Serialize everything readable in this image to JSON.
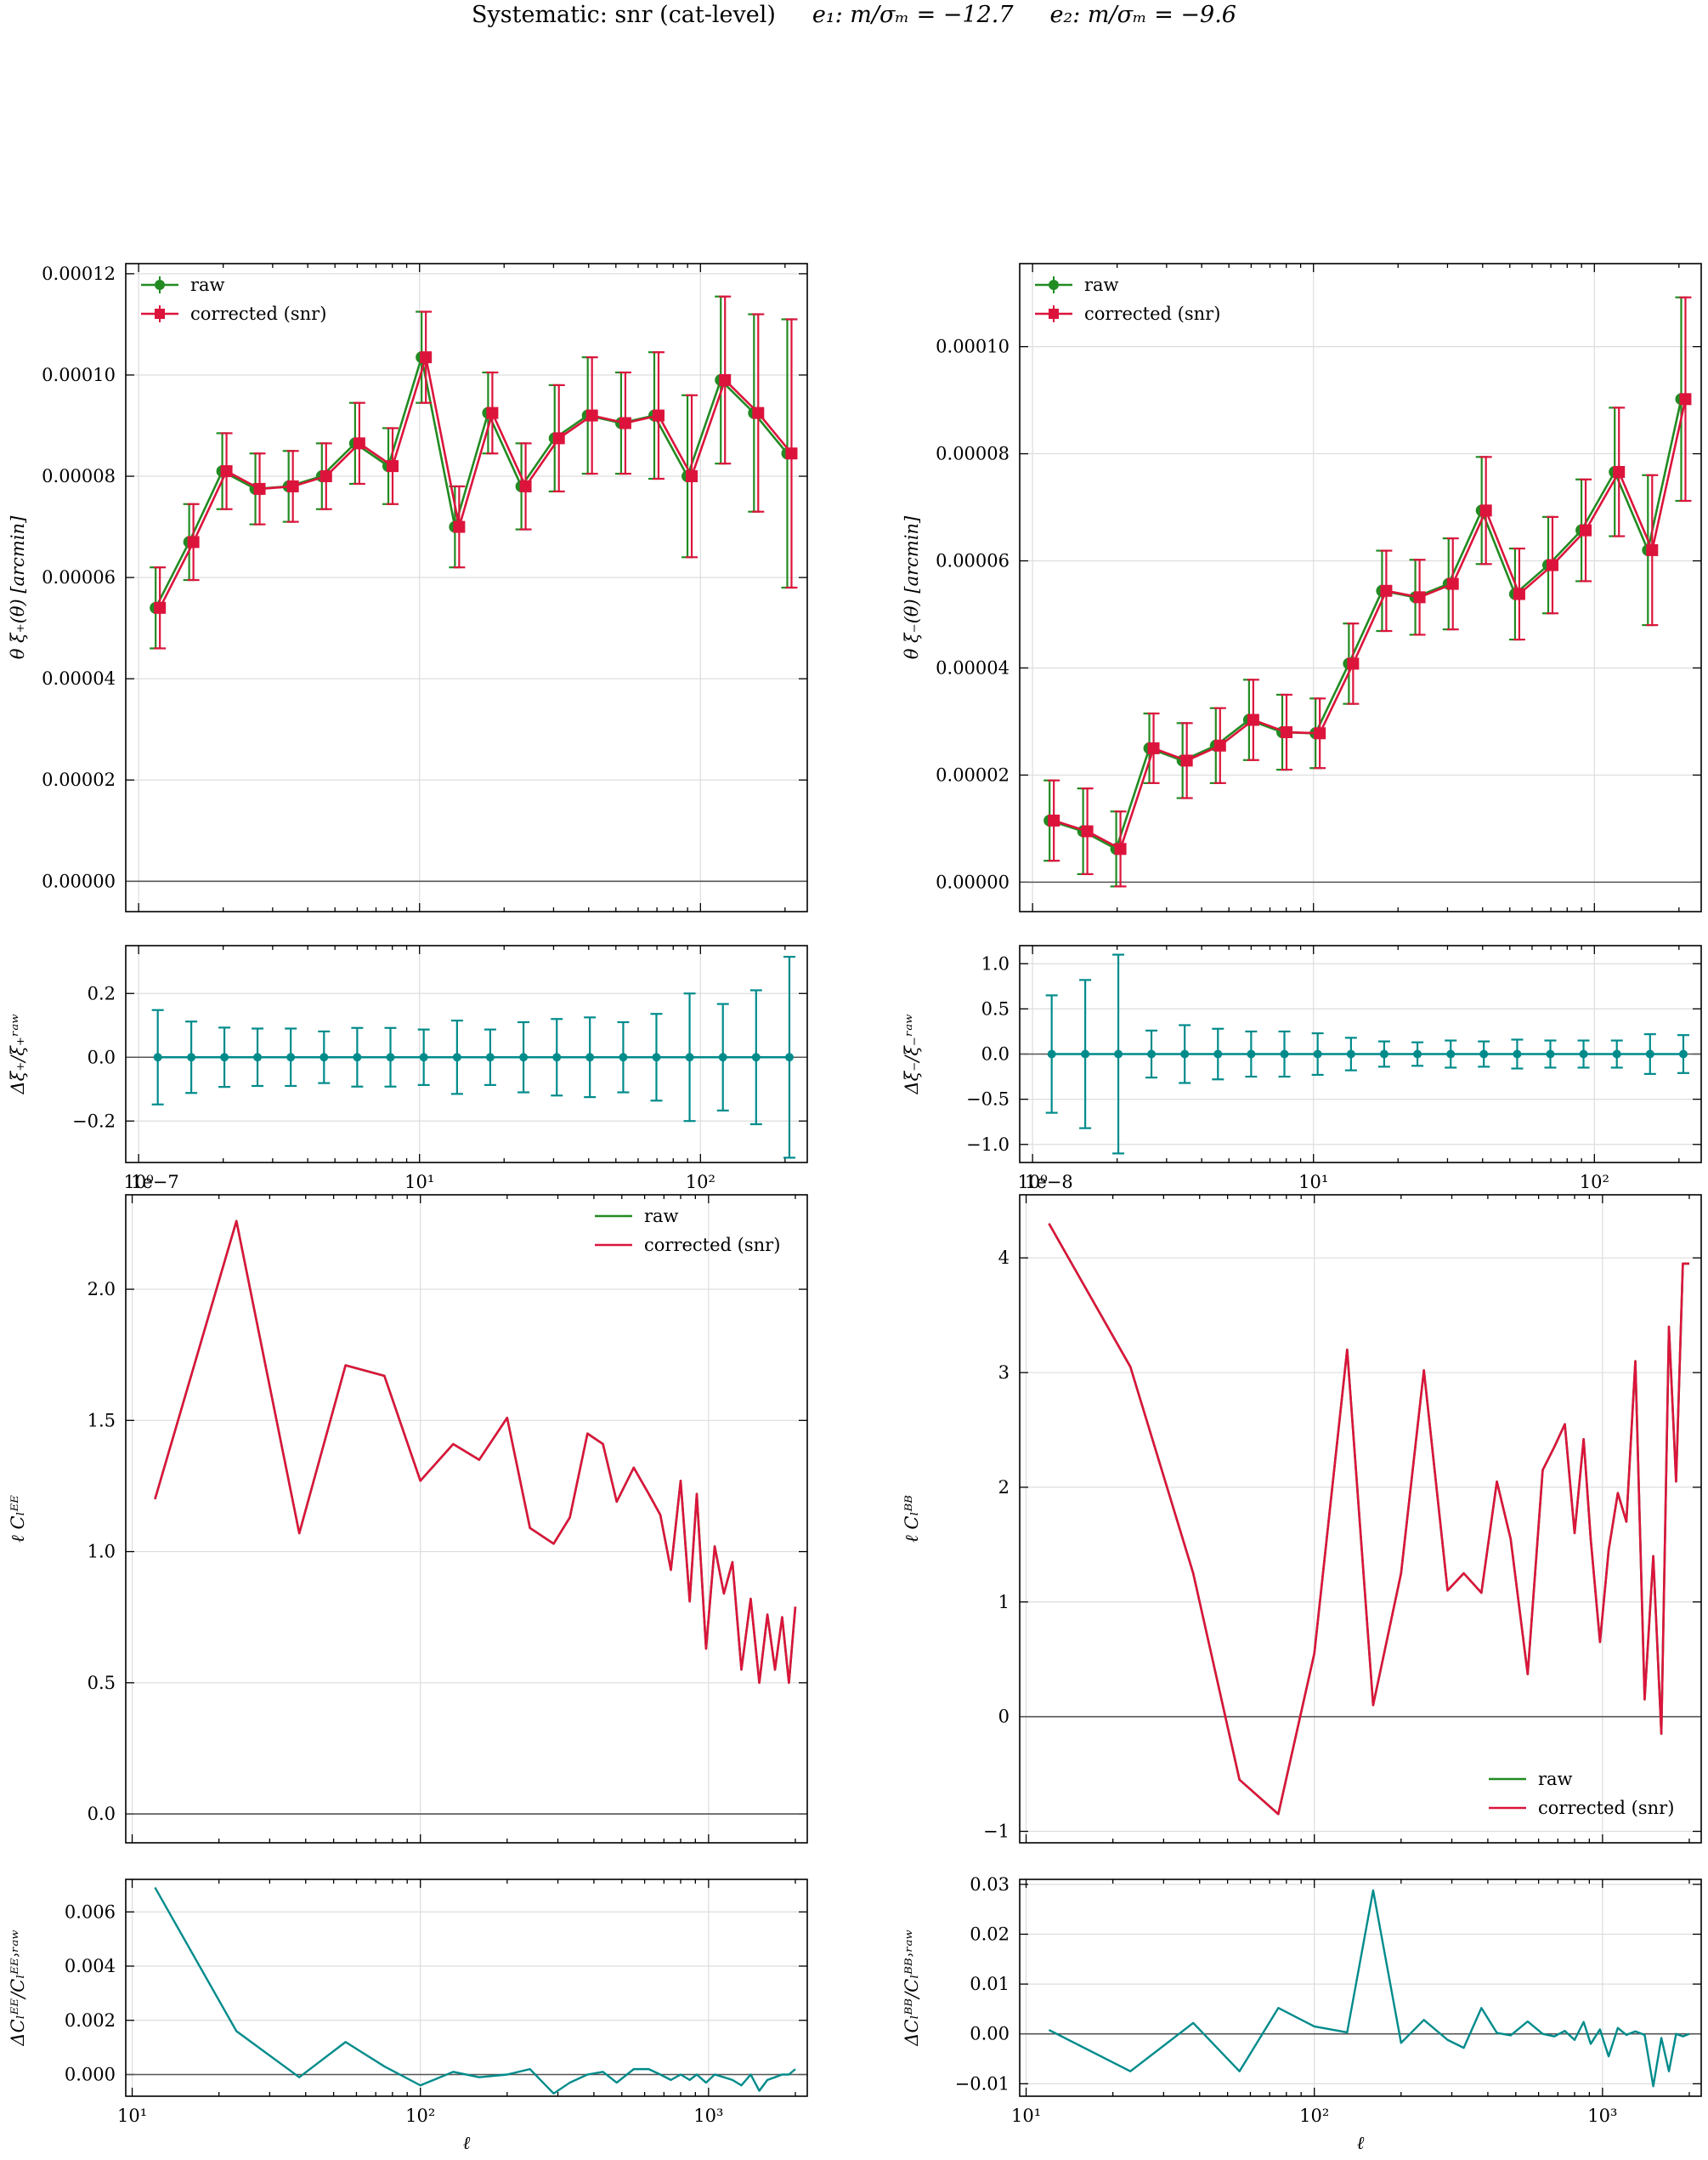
{
  "figure": {
    "title_text": "Systematic: snr (cat-level)",
    "title_e1": "e₁: m/σₘ = −12.7",
    "title_e2": "e₂: m/σₘ = −9.6",
    "colors": {
      "raw": "#228b22",
      "corrected": "#dc143c",
      "ratio": "#008b8b",
      "zero_line": "#555555"
    }
  },
  "chart_data": [
    {
      "id": "xi_plus",
      "type": "line",
      "ylabel": "θ ξ₊(θ) [arcmin]",
      "xlim": [
        0.9,
        240
      ],
      "xscale": "log",
      "ylim": [
        -6e-06,
        0.000122
      ],
      "yticks": [
        0,
        2e-05,
        4e-05,
        6e-05,
        8e-05,
        0.0001,
        0.00012
      ],
      "ytick_labels": [
        "0.00000",
        "0.00002",
        "0.00004",
        "0.00006",
        "0.00008",
        "0.00010",
        "0.00012"
      ],
      "legend": {
        "loc": "upper left",
        "entries": [
          "raw",
          "corrected (snr)"
        ]
      },
      "x": [
        1.17,
        1.54,
        2.02,
        2.65,
        3.48,
        4.57,
        6.0,
        7.88,
        10.35,
        13.6,
        17.85,
        23.45,
        30.8,
        40.4,
        53.1,
        69.7,
        91.5,
        120.2,
        157.8,
        207.3
      ],
      "series": [
        {
          "name": "raw",
          "marker": "circle",
          "values": [
            5.4e-05,
            6.7e-05,
            8.1e-05,
            7.75e-05,
            7.8e-05,
            8e-05,
            8.65e-05,
            8.2e-05,
            0.0001035,
            7e-05,
            9.25e-05,
            7.8e-05,
            8.75e-05,
            9.2e-05,
            9.05e-05,
            9.2e-05,
            8e-05,
            9.9e-05,
            9.25e-05,
            8.45e-05
          ],
          "errors": [
            8e-06,
            7.5e-06,
            7.5e-06,
            7e-06,
            7e-06,
            6.5e-06,
            8e-06,
            7.5e-06,
            9e-06,
            8e-06,
            8e-06,
            8.5e-06,
            1.05e-05,
            1.15e-05,
            1e-05,
            1.25e-05,
            1.6e-05,
            1.65e-05,
            1.95e-05,
            2.65e-05
          ]
        },
        {
          "name": "corrected (snr)",
          "marker": "square",
          "values": [
            5.4e-05,
            6.7e-05,
            8.1e-05,
            7.75e-05,
            7.8e-05,
            8e-05,
            8.65e-05,
            8.2e-05,
            0.0001035,
            7e-05,
            9.25e-05,
            7.8e-05,
            8.75e-05,
            9.2e-05,
            9.05e-05,
            9.2e-05,
            8e-05,
            9.9e-05,
            9.25e-05,
            8.45e-05
          ],
          "errors": [
            8e-06,
            7.5e-06,
            7.5e-06,
            7e-06,
            7e-06,
            6.5e-06,
            8e-06,
            7.5e-06,
            9e-06,
            8e-06,
            8e-06,
            8.5e-06,
            1.05e-05,
            1.15e-05,
            1e-05,
            1.25e-05,
            1.6e-05,
            1.65e-05,
            1.95e-05,
            2.65e-05
          ]
        }
      ],
      "grid": true
    },
    {
      "id": "xi_minus",
      "type": "line",
      "ylabel": "θ ξ₋(θ) [arcmin]",
      "xlim": [
        0.9,
        240
      ],
      "xscale": "log",
      "ylim": [
        -5.5e-06,
        0.0001155
      ],
      "yticks": [
        0,
        2e-05,
        4e-05,
        6e-05,
        8e-05,
        0.0001
      ],
      "ytick_labels": [
        "0.00000",
        "0.00002",
        "0.00004",
        "0.00006",
        "0.00008",
        "0.00010"
      ],
      "legend": {
        "loc": "upper left",
        "entries": [
          "raw",
          "corrected (snr)"
        ]
      },
      "x": [
        1.17,
        1.54,
        2.02,
        2.65,
        3.48,
        4.57,
        6.0,
        7.88,
        10.35,
        13.6,
        17.85,
        23.45,
        30.8,
        40.4,
        53.1,
        69.7,
        91.5,
        120.2,
        157.8,
        207.3
      ],
      "series": [
        {
          "name": "raw",
          "marker": "circle",
          "values": [
            1.15e-05,
            9.5e-06,
            6.2e-06,
            2.5e-05,
            2.27e-05,
            2.55e-05,
            3.03e-05,
            2.8e-05,
            2.78e-05,
            4.08e-05,
            5.44e-05,
            5.32e-05,
            5.57e-05,
            6.94e-05,
            5.38e-05,
            5.92e-05,
            6.57e-05,
            7.66e-05,
            6.2e-05,
            9.02e-05
          ],
          "errors": [
            7.5e-06,
            8e-06,
            7e-06,
            6.5e-06,
            7e-06,
            7e-06,
            7.5e-06,
            7e-06,
            6.5e-06,
            7.5e-06,
            7.5e-06,
            7e-06,
            8.5e-06,
            1e-05,
            8.5e-06,
            9e-06,
            9.5e-06,
            1.2e-05,
            1.4e-05,
            1.9e-05
          ]
        },
        {
          "name": "corrected (snr)",
          "marker": "square",
          "values": [
            1.15e-05,
            9.5e-06,
            6.2e-06,
            2.5e-05,
            2.27e-05,
            2.55e-05,
            3.03e-05,
            2.8e-05,
            2.78e-05,
            4.08e-05,
            5.44e-05,
            5.32e-05,
            5.57e-05,
            6.94e-05,
            5.38e-05,
            5.92e-05,
            6.57e-05,
            7.66e-05,
            6.2e-05,
            9.02e-05
          ],
          "errors": [
            7.5e-06,
            8e-06,
            7e-06,
            6.5e-06,
            7e-06,
            7e-06,
            7.5e-06,
            7e-06,
            6.5e-06,
            7.5e-06,
            7.5e-06,
            7e-06,
            8.5e-06,
            1e-05,
            8.5e-06,
            9e-06,
            9.5e-06,
            1.2e-05,
            1.4e-05,
            1.9e-05
          ]
        }
      ],
      "grid": true
    },
    {
      "id": "dxi_plus",
      "type": "line",
      "ylabel": "Δξ₊/ξ₊ʳᵃʷ",
      "xlim": [
        0.9,
        240
      ],
      "xscale": "log",
      "xticks": [
        1,
        10,
        100
      ],
      "xtick_labels": [
        "10⁰",
        "10¹",
        "10²"
      ],
      "offset_text": "1e−7",
      "ylim": [
        -0.33,
        0.35
      ],
      "yticks": [
        -0.2,
        0.0,
        0.2
      ],
      "ytick_labels": [
        "−0.2",
        "0.0",
        "0.2"
      ],
      "x": [
        1.17,
        1.54,
        2.02,
        2.65,
        3.48,
        4.57,
        6.0,
        7.88,
        10.35,
        13.6,
        17.85,
        23.45,
        30.8,
        40.4,
        53.1,
        69.7,
        91.5,
        120.2,
        157.8,
        207.3
      ],
      "values": [
        0,
        0,
        0,
        0,
        0,
        0,
        0,
        0,
        0,
        0,
        0,
        0,
        0,
        0,
        0,
        0,
        0,
        0,
        0,
        0
      ],
      "errors": [
        0.148,
        0.112,
        0.093,
        0.09,
        0.09,
        0.081,
        0.092,
        0.092,
        0.087,
        0.115,
        0.087,
        0.11,
        0.12,
        0.125,
        0.11,
        0.136,
        0.2,
        0.167,
        0.21,
        0.315
      ],
      "grid": true
    },
    {
      "id": "dxi_minus",
      "type": "line",
      "ylabel": "Δξ₋/ξ₋ʳᵃʷ",
      "xlim": [
        0.9,
        240
      ],
      "xscale": "log",
      "xticks": [
        1,
        10,
        100
      ],
      "xtick_labels": [
        "10⁰",
        "10¹",
        "10²"
      ],
      "offset_text": "1e−8",
      "ylim": [
        -1.2,
        1.2
      ],
      "yticks": [
        -1.0,
        -0.5,
        0.0,
        0.5,
        1.0
      ],
      "ytick_labels": [
        "−1.0",
        "−0.5",
        "0.0",
        "0.5",
        "1.0"
      ],
      "x": [
        1.17,
        1.54,
        2.02,
        2.65,
        3.48,
        4.57,
        6.0,
        7.88,
        10.35,
        13.6,
        17.85,
        23.45,
        30.8,
        40.4,
        53.1,
        69.7,
        91.5,
        120.2,
        157.8,
        207.3
      ],
      "values": [
        0,
        0,
        0,
        0,
        0,
        0,
        0,
        0,
        0,
        0,
        0,
        0,
        0,
        0,
        0,
        0,
        0,
        0,
        0,
        0
      ],
      "errors": [
        0.65,
        0.82,
        1.1,
        0.26,
        0.32,
        0.28,
        0.25,
        0.25,
        0.23,
        0.18,
        0.14,
        0.13,
        0.15,
        0.14,
        0.16,
        0.15,
        0.15,
        0.15,
        0.22,
        0.21
      ],
      "grid": true
    },
    {
      "id": "cl_ee",
      "type": "line",
      "ylabel": "ℓ Cₗᴱᴱ",
      "xlim": [
        9.5,
        2200
      ],
      "xscale": "log",
      "ylim": [
        -0.11,
        2.36
      ],
      "yticks": [
        0,
        0.5,
        1.0,
        1.5,
        2.0
      ],
      "ytick_labels": [
        "0.0",
        "0.5",
        "1.0",
        "1.5",
        "2.0"
      ],
      "legend": {
        "loc": "upper right",
        "entries": [
          "raw",
          "corrected (snr)"
        ]
      },
      "x": [
        12,
        23,
        38,
        55,
        75,
        100,
        130,
        160,
        200,
        240,
        290,
        330,
        380,
        430,
        480,
        550,
        620,
        680,
        740,
        800,
        860,
        910,
        980,
        1050,
        1130,
        1210,
        1300,
        1400,
        1500,
        1600,
        1700,
        1800,
        1900,
        2000
      ],
      "series": [
        {
          "name": "raw",
          "values": [
            1.2,
            2.26,
            1.07,
            1.71,
            1.67,
            1.27,
            1.41,
            1.35,
            1.51,
            1.09,
            1.03,
            1.13,
            1.45,
            1.41,
            1.19,
            1.32,
            1.22,
            1.14,
            0.93,
            1.27,
            0.81,
            1.22,
            0.63,
            1.02,
            0.84,
            0.96,
            0.55,
            0.82,
            0.5,
            0.76,
            0.55,
            0.75,
            0.5,
            0.79
          ]
        },
        {
          "name": "corrected (snr)",
          "values": [
            1.2,
            2.26,
            1.07,
            1.71,
            1.67,
            1.27,
            1.41,
            1.35,
            1.51,
            1.09,
            1.03,
            1.13,
            1.45,
            1.41,
            1.19,
            1.32,
            1.22,
            1.14,
            0.93,
            1.27,
            0.81,
            1.22,
            0.63,
            1.02,
            0.84,
            0.96,
            0.55,
            0.82,
            0.5,
            0.76,
            0.55,
            0.75,
            0.5,
            0.79
          ]
        }
      ],
      "grid": true
    },
    {
      "id": "cl_bb",
      "type": "line",
      "ylabel": "ℓ Cₗᴮᴮ",
      "xlim": [
        9.5,
        2200
      ],
      "xscale": "log",
      "ylim": [
        -1.1,
        4.55
      ],
      "yticks": [
        -1,
        0,
        1,
        2,
        3,
        4
      ],
      "ytick_labels": [
        "−1",
        "0",
        "1",
        "2",
        "3",
        "4"
      ],
      "legend": {
        "loc": "lower right",
        "entries": [
          "raw",
          "corrected (snr)"
        ]
      },
      "x": [
        12,
        23,
        38,
        55,
        75,
        100,
        130,
        160,
        200,
        240,
        290,
        330,
        380,
        430,
        480,
        550,
        620,
        680,
        740,
        800,
        860,
        910,
        980,
        1050,
        1130,
        1210,
        1300,
        1400,
        1500,
        1600,
        1700,
        1800,
        1900,
        2000
      ],
      "series": [
        {
          "name": "raw",
          "values": [
            4.3,
            3.05,
            1.25,
            -0.55,
            -0.85,
            0.55,
            3.2,
            0.1,
            1.25,
            3.02,
            1.1,
            1.25,
            1.08,
            2.05,
            1.55,
            0.37,
            2.15,
            2.35,
            2.55,
            1.6,
            2.42,
            1.55,
            0.65,
            1.45,
            1.95,
            1.7,
            3.1,
            0.15,
            1.4,
            -0.15,
            3.4,
            2.05,
            3.95,
            3.95
          ]
        },
        {
          "name": "corrected (snr)",
          "values": [
            4.3,
            3.05,
            1.25,
            -0.55,
            -0.85,
            0.55,
            3.2,
            0.1,
            1.25,
            3.02,
            1.1,
            1.25,
            1.08,
            2.05,
            1.55,
            0.37,
            2.15,
            2.35,
            2.55,
            1.6,
            2.42,
            1.55,
            0.65,
            1.45,
            1.95,
            1.7,
            3.1,
            0.15,
            1.4,
            -0.15,
            3.4,
            2.05,
            3.95,
            3.95
          ]
        }
      ],
      "grid": true
    },
    {
      "id": "dcl_ee",
      "type": "line",
      "ylabel": "ΔCₗᴱᴱ/Cₗᴱᴱ˒ʳᵃʷ",
      "xlabel": "ℓ",
      "xlim": [
        9.5,
        2200
      ],
      "xscale": "log",
      "xticks": [
        10,
        100,
        1000
      ],
      "xtick_labels": [
        "10¹",
        "10²",
        "10³"
      ],
      "ylim": [
        -0.0008,
        0.0072
      ],
      "yticks": [
        0.0,
        0.002,
        0.004,
        0.006
      ],
      "ytick_labels": [
        "0.000",
        "0.002",
        "0.004",
        "0.006"
      ],
      "x": [
        12,
        23,
        38,
        55,
        75,
        100,
        130,
        160,
        200,
        240,
        290,
        330,
        380,
        430,
        480,
        550,
        620,
        680,
        740,
        800,
        860,
        910,
        980,
        1050,
        1130,
        1210,
        1300,
        1400,
        1500,
        1600,
        1700,
        1800,
        1900,
        2000
      ],
      "values": [
        0.0069,
        0.0016,
        -0.0001,
        0.0012,
        0.0003,
        -0.0004,
        0.0001,
        -0.0001,
        0.0,
        0.0002,
        -0.0007,
        -0.0003,
        0.0,
        0.0001,
        -0.0003,
        0.0002,
        0.0002,
        0.0,
        -0.0002,
        0.0,
        -0.0002,
        0.0,
        -0.0003,
        0.0,
        -0.0001,
        -0.0002,
        -0.0004,
        0.0,
        -0.0006,
        -0.0002,
        -0.0001,
        0.0,
        0.0,
        0.0002
      ],
      "grid": true
    },
    {
      "id": "dcl_bb",
      "type": "line",
      "ylabel": "ΔCₗᴮᴮ/Cₗᴮᴮ˒ʳᵃʷ",
      "xlabel": "ℓ",
      "xlim": [
        9.5,
        2200
      ],
      "xscale": "log",
      "xticks": [
        10,
        100,
        1000
      ],
      "xtick_labels": [
        "10¹",
        "10²",
        "10³"
      ],
      "ylim": [
        -0.0125,
        0.031
      ],
      "yticks": [
        -0.01,
        0.0,
        0.01,
        0.02,
        0.03
      ],
      "ytick_labels": [
        "−0.01",
        "0.00",
        "0.01",
        "0.02",
        "0.03"
      ],
      "x": [
        12,
        23,
        38,
        55,
        75,
        100,
        130,
        160,
        200,
        240,
        290,
        330,
        380,
        430,
        480,
        550,
        620,
        680,
        740,
        800,
        860,
        910,
        980,
        1050,
        1130,
        1210,
        1300,
        1400,
        1500,
        1600,
        1700,
        1800,
        1900,
        2000
      ],
      "values": [
        0.0008,
        -0.0075,
        0.0022,
        -0.0075,
        0.0052,
        0.0015,
        0.0003,
        0.0288,
        -0.0018,
        0.0028,
        -0.0012,
        -0.0028,
        0.0052,
        0.0002,
        -0.0003,
        0.0025,
        0.0,
        -0.0005,
        0.0006,
        -0.0012,
        0.0024,
        -0.002,
        0.0009,
        -0.0045,
        0.0012,
        -0.0002,
        0.0005,
        -0.0002,
        -0.0105,
        -0.0008,
        -0.0075,
        0.0,
        -0.0005,
        0.0
      ]
    }
  ]
}
